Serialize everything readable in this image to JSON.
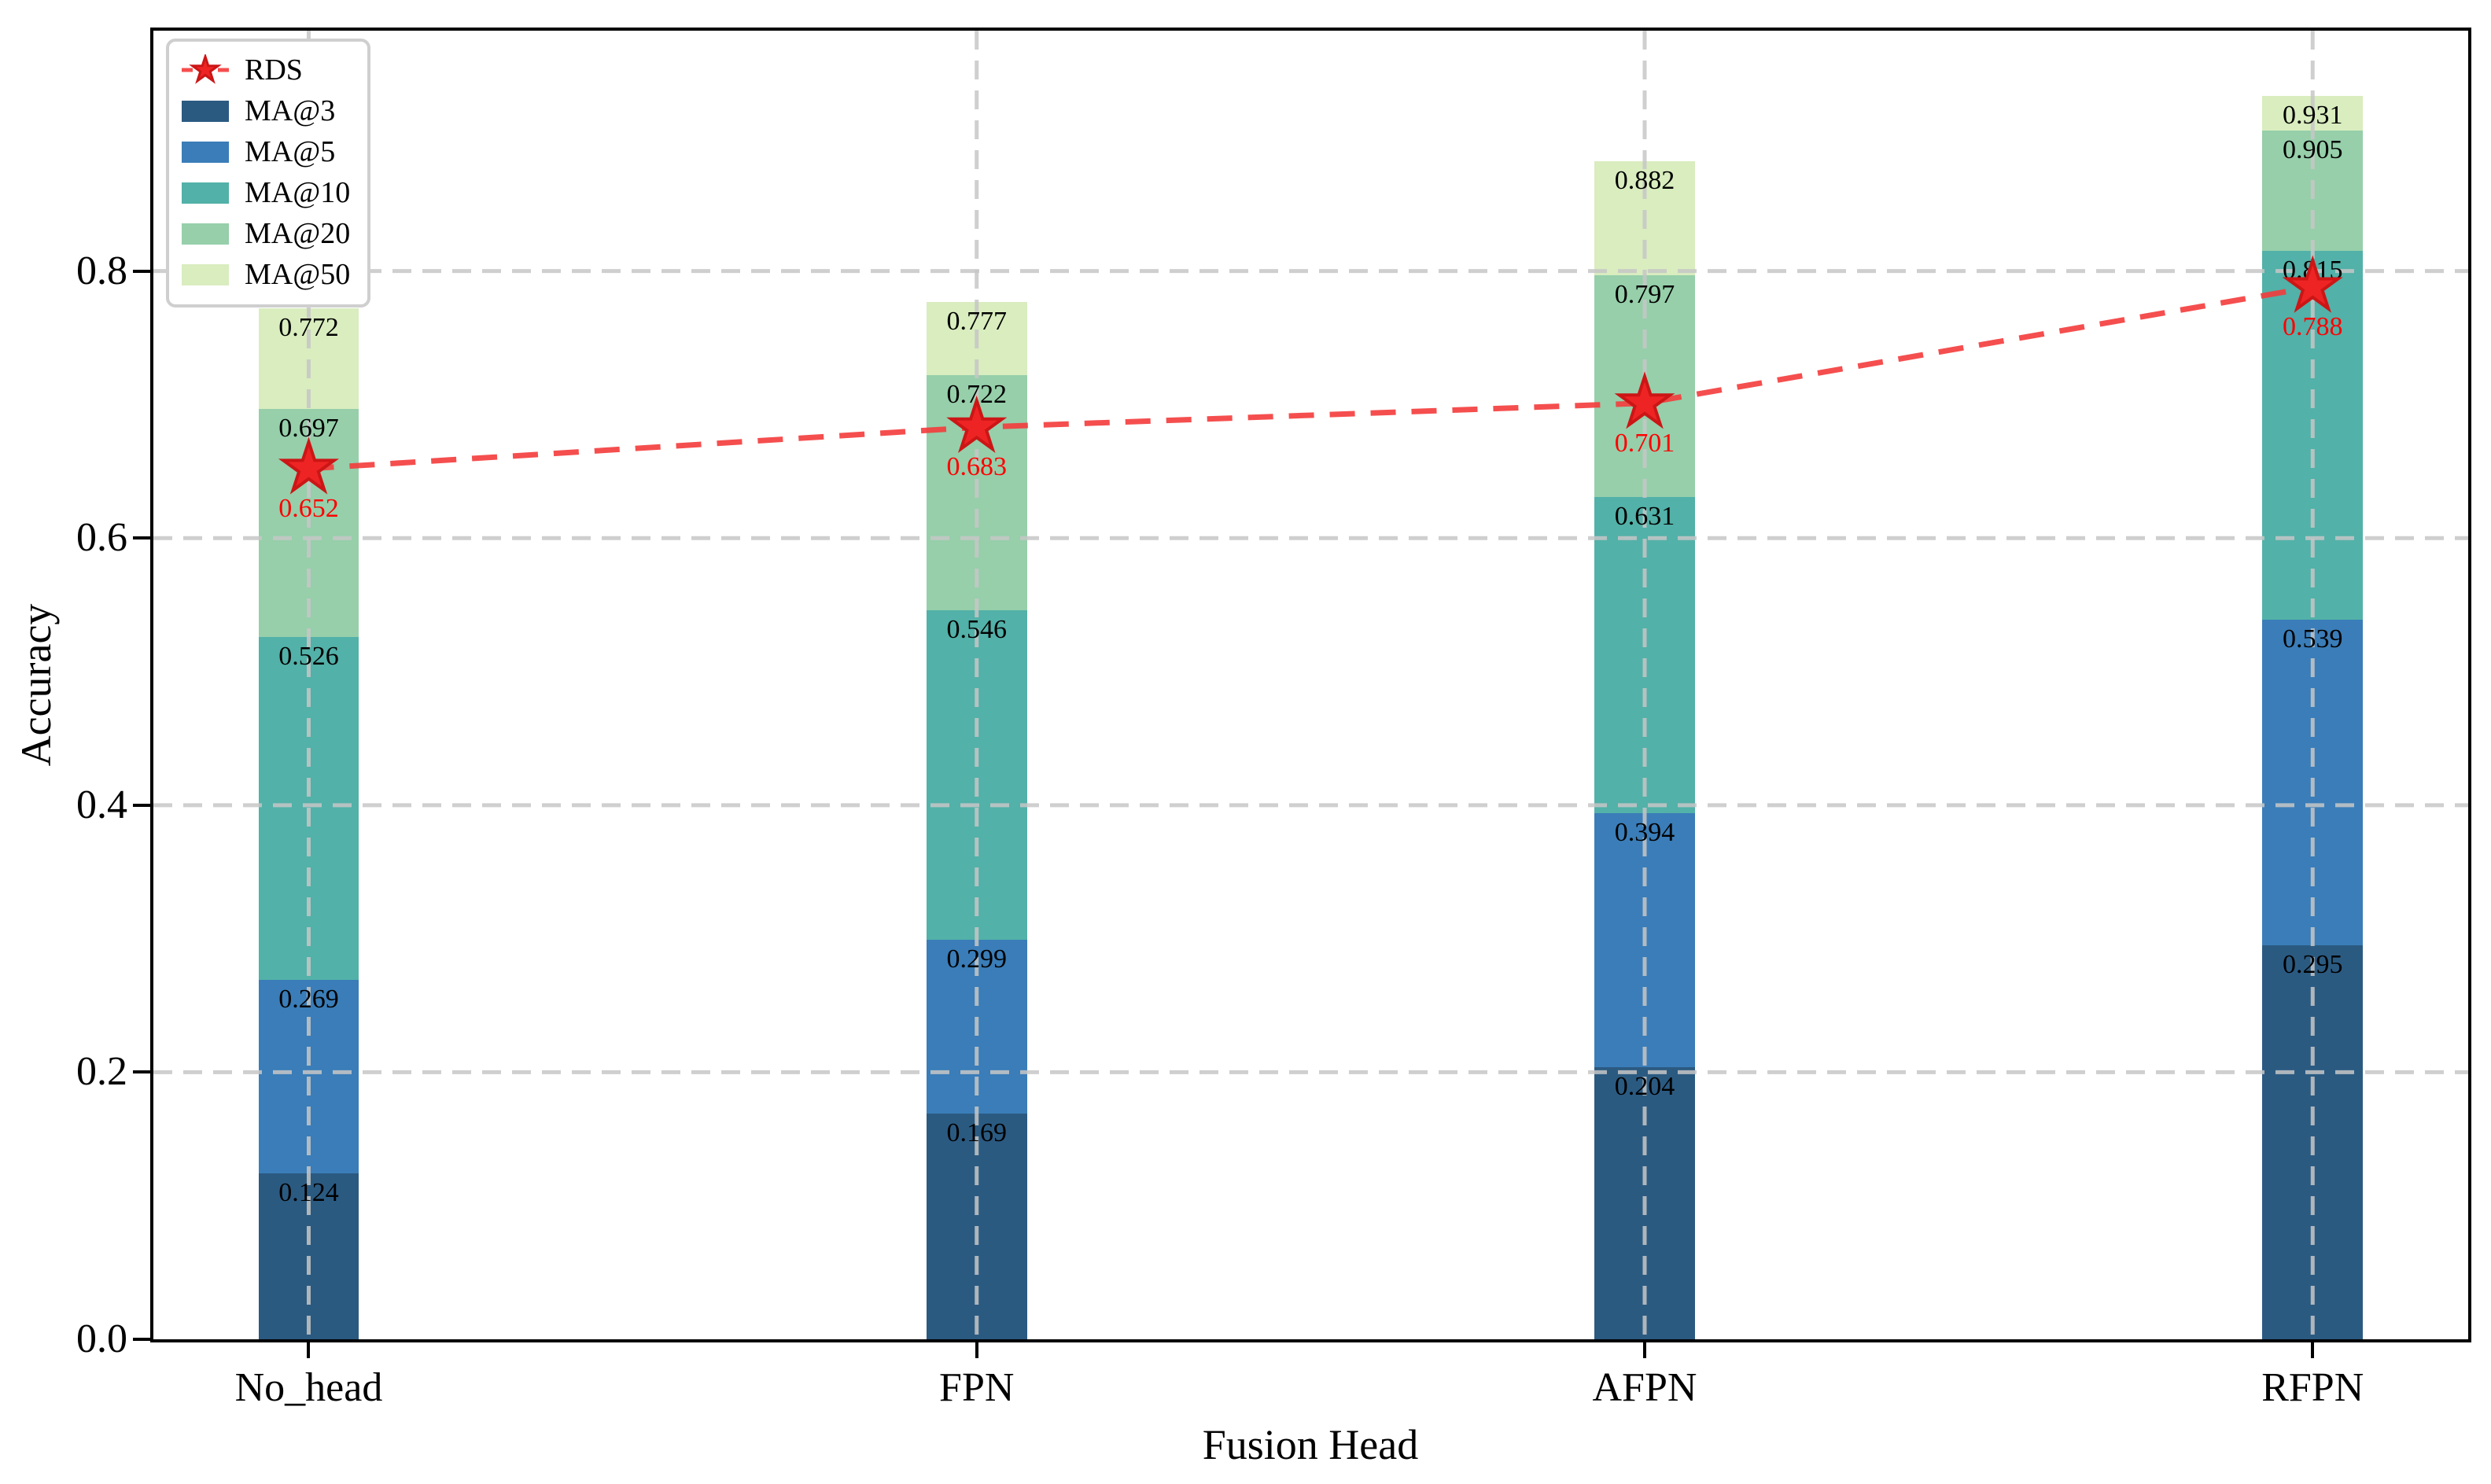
{
  "chart_data": {
    "type": "bar",
    "variant": "overlay-stacked-with-line",
    "title": "",
    "xlabel": "Fusion Head",
    "ylabel": "Accuracy",
    "categories": [
      "No_head",
      "FPN",
      "AFPN",
      "RFPN"
    ],
    "series": [
      {
        "name": "MA@3",
        "color": "#2b5a81",
        "values": [
          0.124,
          0.169,
          0.204,
          0.295
        ]
      },
      {
        "name": "MA@5",
        "color": "#3a7db8",
        "values": [
          0.269,
          0.299,
          0.394,
          0.539
        ]
      },
      {
        "name": "MA@10",
        "color": "#52b1a8",
        "values": [
          0.526,
          0.546,
          0.631,
          0.815
        ]
      },
      {
        "name": "MA@20",
        "color": "#96cfaa",
        "values": [
          0.697,
          0.722,
          0.797,
          0.905
        ]
      },
      {
        "name": "MA@50",
        "color": "#d9edbf",
        "values": [
          0.772,
          0.777,
          0.882,
          0.931
        ]
      }
    ],
    "line_series": {
      "name": "RDS",
      "line_color": "#f43b3b",
      "marker_color": "#ee2424",
      "marker_edge_color": "#cc1616",
      "label_color": "#ff0000",
      "values": [
        0.652,
        0.683,
        0.701,
        0.788
      ]
    },
    "ytick_labels": [
      "0.0",
      "0.2",
      "0.4",
      "0.6",
      "0.8"
    ],
    "ylim": [
      0,
      0.98
    ],
    "grid": "dashed gray, horizontal at yticks and vertical at bar centers, drawn over bars",
    "legend": {
      "position": "upper left",
      "items": [
        "RDS",
        "MA@3",
        "MA@5",
        "MA@10",
        "MA@20",
        "MA@50"
      ]
    }
  },
  "colors": {
    "grid": "#c7c7c7",
    "spine": "#000000",
    "background": "#ffffff",
    "value_label": "#000000",
    "legend_border": "#cfcfcf"
  }
}
